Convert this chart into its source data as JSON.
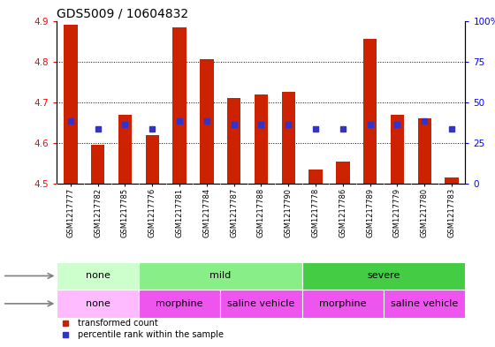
{
  "title": "GDS5009 / 10604832",
  "samples": [
    "GSM1217777",
    "GSM1217782",
    "GSM1217785",
    "GSM1217776",
    "GSM1217781",
    "GSM1217784",
    "GSM1217787",
    "GSM1217788",
    "GSM1217790",
    "GSM1217778",
    "GSM1217786",
    "GSM1217789",
    "GSM1217779",
    "GSM1217780",
    "GSM1217783"
  ],
  "transformed_count": [
    4.89,
    4.595,
    4.67,
    4.62,
    4.885,
    4.805,
    4.71,
    4.72,
    4.725,
    4.535,
    4.555,
    4.855,
    4.67,
    4.66,
    4.515
  ],
  "percentile_rank_y": [
    4.655,
    4.635,
    4.645,
    4.635,
    4.655,
    4.655,
    4.645,
    4.645,
    4.645,
    4.635,
    4.635,
    4.645,
    4.645,
    4.655,
    4.635
  ],
  "bar_bottom": 4.5,
  "ylim_left": [
    4.5,
    4.9
  ],
  "ylim_right": [
    0,
    100
  ],
  "yticks_left": [
    4.5,
    4.6,
    4.7,
    4.8,
    4.9
  ],
  "yticks_right": [
    0,
    25,
    50,
    75,
    100
  ],
  "bar_color": "#cc2200",
  "dot_color": "#3333cc",
  "stress_groups": [
    {
      "label": "none",
      "start": 0,
      "end": 3,
      "color": "#ccffcc"
    },
    {
      "label": "mild",
      "start": 3,
      "end": 9,
      "color": "#88ee88"
    },
    {
      "label": "severe",
      "start": 9,
      "end": 15,
      "color": "#44cc44"
    }
  ],
  "agent_groups": [
    {
      "label": "none",
      "start": 0,
      "end": 3,
      "color": "#ffbbff"
    },
    {
      "label": "morphine",
      "start": 3,
      "end": 6,
      "color": "#ee55ee"
    },
    {
      "label": "saline vehicle",
      "start": 6,
      "end": 9,
      "color": "#ee55ee"
    },
    {
      "label": "morphine",
      "start": 9,
      "end": 12,
      "color": "#ee55ee"
    },
    {
      "label": "saline vehicle",
      "start": 12,
      "end": 15,
      "color": "#ee55ee"
    }
  ],
  "bar_width": 0.5,
  "background_color": "#ffffff",
  "xtick_bg": "#cccccc",
  "title_fontsize": 10,
  "tick_fontsize": 7.5,
  "sample_fontsize": 6,
  "group_fontsize": 8
}
